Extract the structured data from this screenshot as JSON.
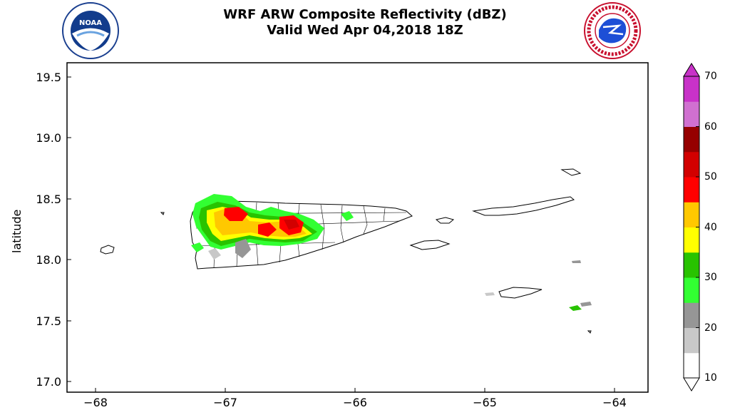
{
  "header": {
    "title_line1": "WRF ARW Composite Reflectivity (dBZ)",
    "title_line2": "Valid Wed Apr 04,2018 18Z",
    "left_logo": "noaa-logo",
    "right_logo": "national-weather-service-logo"
  },
  "map": {
    "ylabel": "latitude",
    "yticks": [
      "19.5",
      "19.0",
      "18.5",
      "18.0",
      "17.5",
      "17.0"
    ],
    "xticks": [
      "−68",
      "−67",
      "−66",
      "−65",
      "−64"
    ],
    "lon_range": [
      -68.2,
      -63.7
    ],
    "lat_range": [
      16.92,
      19.6
    ],
    "grid": false
  },
  "colorbar": {
    "units": "dBZ",
    "tick_labels": [
      "10",
      "20",
      "30",
      "40",
      "50",
      "60",
      "70"
    ],
    "levels": [
      10,
      15,
      20,
      25,
      30,
      35,
      40,
      45,
      50,
      55,
      60,
      65,
      70
    ],
    "colors": [
      "#ffffff",
      "#c8c8c8",
      "#969696",
      "#32ff32",
      "#28c300",
      "#ffff00",
      "#ffc800",
      "#ff0000",
      "#d20000",
      "#960000",
      "#d070d0",
      "#c832c8"
    ]
  },
  "colors": {
    "background": "#ffffff",
    "coastline": "#000000",
    "boundaries": "#000000"
  }
}
